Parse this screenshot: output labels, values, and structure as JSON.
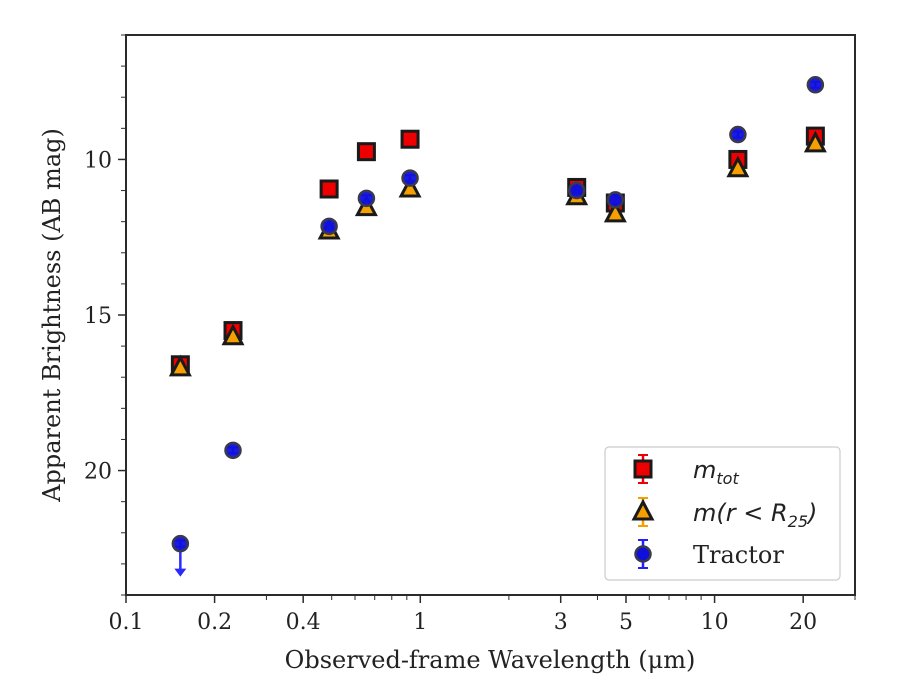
{
  "chart_data": {
    "type": "scatter",
    "title": "",
    "xlabel": "Observed-frame Wavelength (μm)",
    "ylabel": "Apparent Brightness (AB mag)",
    "xscale": "log",
    "xlim": [
      0.1,
      30
    ],
    "ylim": [
      24,
      6
    ],
    "y_inverted": true,
    "x_ticks": [
      {
        "value": 0.1,
        "label": "0.1"
      },
      {
        "value": 0.2,
        "label": "0.2"
      },
      {
        "value": 0.4,
        "label": "0.4"
      },
      {
        "value": 1,
        "label": "1"
      },
      {
        "value": 3,
        "label": "3"
      },
      {
        "value": 5,
        "label": "5"
      },
      {
        "value": 10,
        "label": "10"
      },
      {
        "value": 20,
        "label": "20"
      }
    ],
    "y_ticks": [
      {
        "value": 10,
        "label": "10"
      },
      {
        "value": 15,
        "label": "15"
      },
      {
        "value": 20,
        "label": "20"
      }
    ],
    "legend_position": "lower-right",
    "series": [
      {
        "name": "m_tot",
        "legend_main": "m",
        "legend_sub": "tot",
        "marker": "square",
        "color": "#ee0000",
        "edge_color": "#1a1a1a",
        "errorbar_color": "#ee0000",
        "points": [
          {
            "x": 0.153,
            "y": 16.6
          },
          {
            "x": 0.231,
            "y": 15.5
          },
          {
            "x": 0.49,
            "y": 10.95
          },
          {
            "x": 0.656,
            "y": 9.75
          },
          {
            "x": 0.923,
            "y": 9.35
          },
          {
            "x": 3.4,
            "y": 10.9
          },
          {
            "x": 4.6,
            "y": 11.4
          },
          {
            "x": 12.0,
            "y": 10.0
          },
          {
            "x": 22.0,
            "y": 9.25
          }
        ]
      },
      {
        "name": "m(r<R_25)",
        "legend_main": "m(r < R",
        "legend_sub": "25",
        "legend_tail": ")",
        "marker": "triangle",
        "color": "#f5a000",
        "edge_color": "#1a1a1a",
        "errorbar_color": "#f5a000",
        "points": [
          {
            "x": 0.153,
            "y": 16.7
          },
          {
            "x": 0.231,
            "y": 15.7
          },
          {
            "x": 0.49,
            "y": 12.3
          },
          {
            "x": 0.656,
            "y": 11.55
          },
          {
            "x": 0.923,
            "y": 10.95
          },
          {
            "x": 3.4,
            "y": 11.2
          },
          {
            "x": 4.6,
            "y": 11.75
          },
          {
            "x": 12.0,
            "y": 10.3
          },
          {
            "x": 22.0,
            "y": 9.5
          }
        ]
      },
      {
        "name": "Tractor",
        "legend_main": "Tractor",
        "marker": "circle",
        "color": "#1010dd",
        "edge_color": "#3a3a4a",
        "errorbar_color": "#2020ff",
        "points": [
          {
            "x": 0.153,
            "y": 22.35,
            "upper_limit": true
          },
          {
            "x": 0.231,
            "y": 19.35
          },
          {
            "x": 0.49,
            "y": 12.15
          },
          {
            "x": 0.656,
            "y": 11.25
          },
          {
            "x": 0.923,
            "y": 10.6
          },
          {
            "x": 3.4,
            "y": 11.0
          },
          {
            "x": 4.6,
            "y": 11.3
          },
          {
            "x": 12.0,
            "y": 9.2
          },
          {
            "x": 22.0,
            "y": 7.6
          }
        ]
      }
    ]
  }
}
